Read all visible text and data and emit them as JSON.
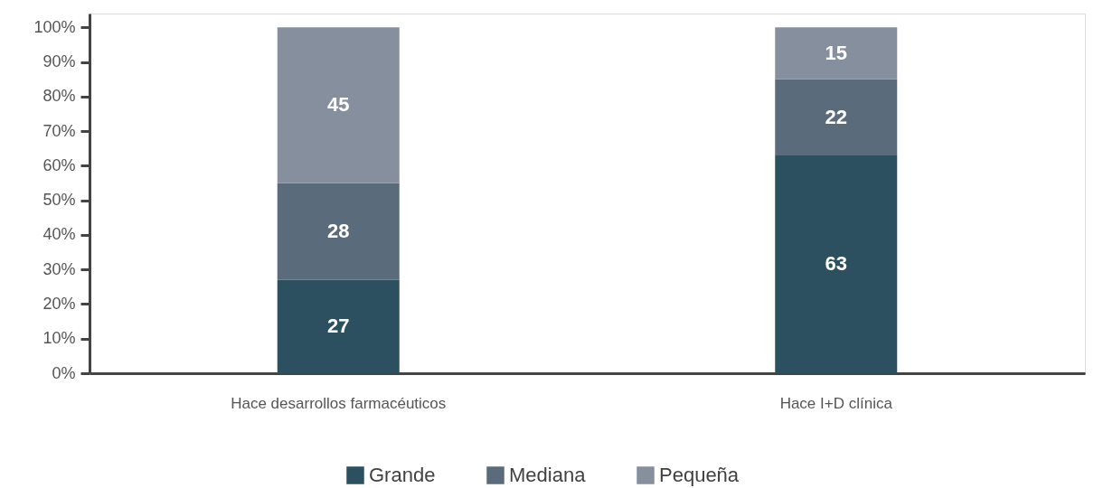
{
  "chart_data": {
    "type": "bar",
    "stacked": true,
    "categories": [
      "Hace desarrollos farmacéuticos",
      "Hace I+D clínica"
    ],
    "series": [
      {
        "name": "Grande",
        "color": "#2d5061",
        "values": [
          27,
          63
        ]
      },
      {
        "name": "Mediana",
        "color": "#5a6b7b",
        "values": [
          28,
          22
        ]
      },
      {
        "name": "Pequeña",
        "color": "#868f9d",
        "values": [
          45,
          15
        ]
      }
    ],
    "ylim": [
      0,
      104
    ],
    "yticks": [
      {
        "value": 0,
        "label": "0%"
      },
      {
        "value": 10,
        "label": "10%"
      },
      {
        "value": 20,
        "label": "20%"
      },
      {
        "value": 30,
        "label": "30%"
      },
      {
        "value": 40,
        "label": "40%"
      },
      {
        "value": 50,
        "label": "50%"
      },
      {
        "value": 60,
        "label": "60%"
      },
      {
        "value": 70,
        "label": "70%"
      },
      {
        "value": 80,
        "label": "80%"
      },
      {
        "value": 90,
        "label": "90%"
      },
      {
        "value": 100,
        "label": "100%"
      }
    ],
    "data_labels": true,
    "grid": false,
    "legend": "bottom"
  }
}
